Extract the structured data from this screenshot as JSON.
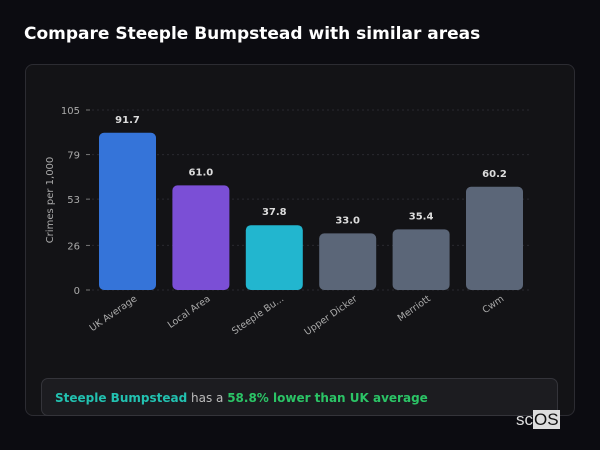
{
  "title": "Compare Steeple Bumpstead with similar areas",
  "chart_data": {
    "type": "bar",
    "categories": [
      "UK Average",
      "Local Area",
      "Steeple Bu...",
      "Upper Dicker",
      "Merriott",
      "Cwm"
    ],
    "values": [
      91.7,
      61.0,
      37.8,
      33.0,
      35.4,
      60.2
    ],
    "data_labels": [
      "91.7",
      "61.0",
      "37.8",
      "33.0",
      "35.4",
      "60.2"
    ],
    "colors": [
      "#3574d9",
      "#7b4fd6",
      "#22b6cf",
      "#5b6678",
      "#5b6678",
      "#5b6678"
    ],
    "ylabel": "Crimes per 1,000",
    "yticks": [
      0,
      26,
      53,
      79,
      105
    ],
    "ylim": [
      0,
      105
    ],
    "grid": true
  },
  "summary": {
    "place": "Steeple Bumpstead",
    "middle": " has a ",
    "comparison": "58.8% lower than UK average"
  },
  "logo": {
    "text_a": "sc",
    "text_b": "OS"
  }
}
